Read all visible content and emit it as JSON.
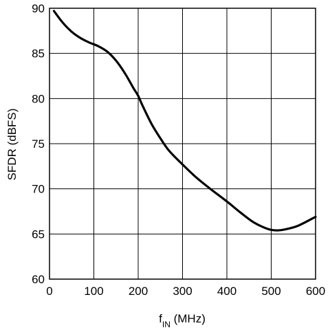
{
  "chart_data": {
    "type": "line",
    "title": "",
    "xlabel": {
      "main": "f",
      "sub": "IN",
      "unit": " (MHz)"
    },
    "ylabel": "SFDR (dBFS)",
    "xlim": [
      0,
      600
    ],
    "ylim": [
      60,
      90
    ],
    "x_ticks": [
      0,
      100,
      200,
      300,
      400,
      500,
      600
    ],
    "y_ticks": [
      60,
      65,
      70,
      75,
      80,
      85,
      90
    ],
    "grid": true,
    "legend": "none",
    "series": [
      {
        "color": "#000000",
        "x": [
          10,
          30,
          50,
          70,
          90,
          110,
          130,
          150,
          170,
          190,
          200,
          210,
          230,
          250,
          270,
          300,
          330,
          360,
          400,
          430,
          460,
          490,
          510,
          530,
          560,
          600
        ],
        "y": [
          89.7,
          88.4,
          87.4,
          86.7,
          86.2,
          85.8,
          85.2,
          84.2,
          82.8,
          81.1,
          80.3,
          79.2,
          77.2,
          75.6,
          74.2,
          72.7,
          71.3,
          70.1,
          68.6,
          67.4,
          66.3,
          65.6,
          65.4,
          65.5,
          65.9,
          66.9
        ]
      }
    ]
  }
}
